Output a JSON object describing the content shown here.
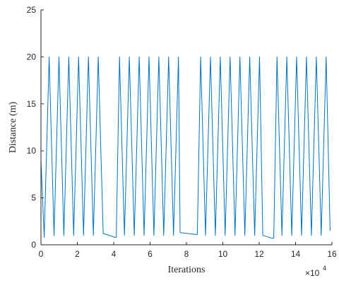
{
  "chart_data": {
    "type": "line",
    "xlabel": "Iterations",
    "ylabel": "Distance (m)",
    "x_multiplier": "×10",
    "x_multiplier_exp": "4",
    "xlim": [
      0,
      16
    ],
    "ylim": [
      0,
      25
    ],
    "xticks": [
      0,
      2,
      4,
      6,
      8,
      10,
      12,
      14,
      16
    ],
    "yticks": [
      0,
      5,
      10,
      15,
      20,
      25
    ],
    "grid": false,
    "line_color": "#0072BD",
    "series": [
      {
        "x": [
          0.0,
          0.18,
          0.45,
          0.72,
          0.99,
          1.26,
          1.53,
          1.8,
          2.07,
          2.34,
          2.61,
          2.88,
          3.15,
          3.42,
          3.6,
          4.05,
          4.14,
          4.32,
          4.59,
          4.86,
          5.13,
          5.4,
          5.67,
          5.94,
          6.21,
          6.48,
          6.75,
          7.02,
          7.29,
          7.56,
          7.65,
          8.5,
          8.6,
          8.78,
          9.05,
          9.32,
          9.59,
          9.86,
          10.13,
          10.4,
          10.67,
          10.94,
          11.21,
          11.48,
          11.75,
          12.02,
          12.2,
          12.7,
          12.8,
          12.98,
          13.25,
          13.52,
          13.79,
          14.06,
          14.33,
          14.6,
          14.87,
          15.14,
          15.41,
          15.68,
          15.9
        ],
        "y": [
          9.0,
          0.8,
          20.0,
          1.0,
          20.0,
          1.0,
          20.0,
          1.0,
          20.0,
          1.0,
          20.0,
          1.0,
          20.0,
          1.2,
          1.1,
          0.8,
          0.8,
          20.0,
          1.0,
          20.0,
          1.0,
          20.0,
          1.0,
          20.0,
          1.0,
          20.0,
          1.0,
          20.0,
          1.0,
          20.0,
          1.3,
          1.1,
          1.1,
          20.0,
          1.0,
          20.0,
          1.0,
          20.0,
          1.0,
          20.0,
          1.0,
          20.0,
          1.0,
          20.0,
          1.0,
          20.0,
          1.0,
          0.7,
          0.7,
          20.0,
          1.0,
          20.0,
          1.0,
          20.0,
          1.0,
          20.0,
          1.0,
          20.0,
          1.0,
          20.0,
          1.5
        ]
      }
    ]
  }
}
